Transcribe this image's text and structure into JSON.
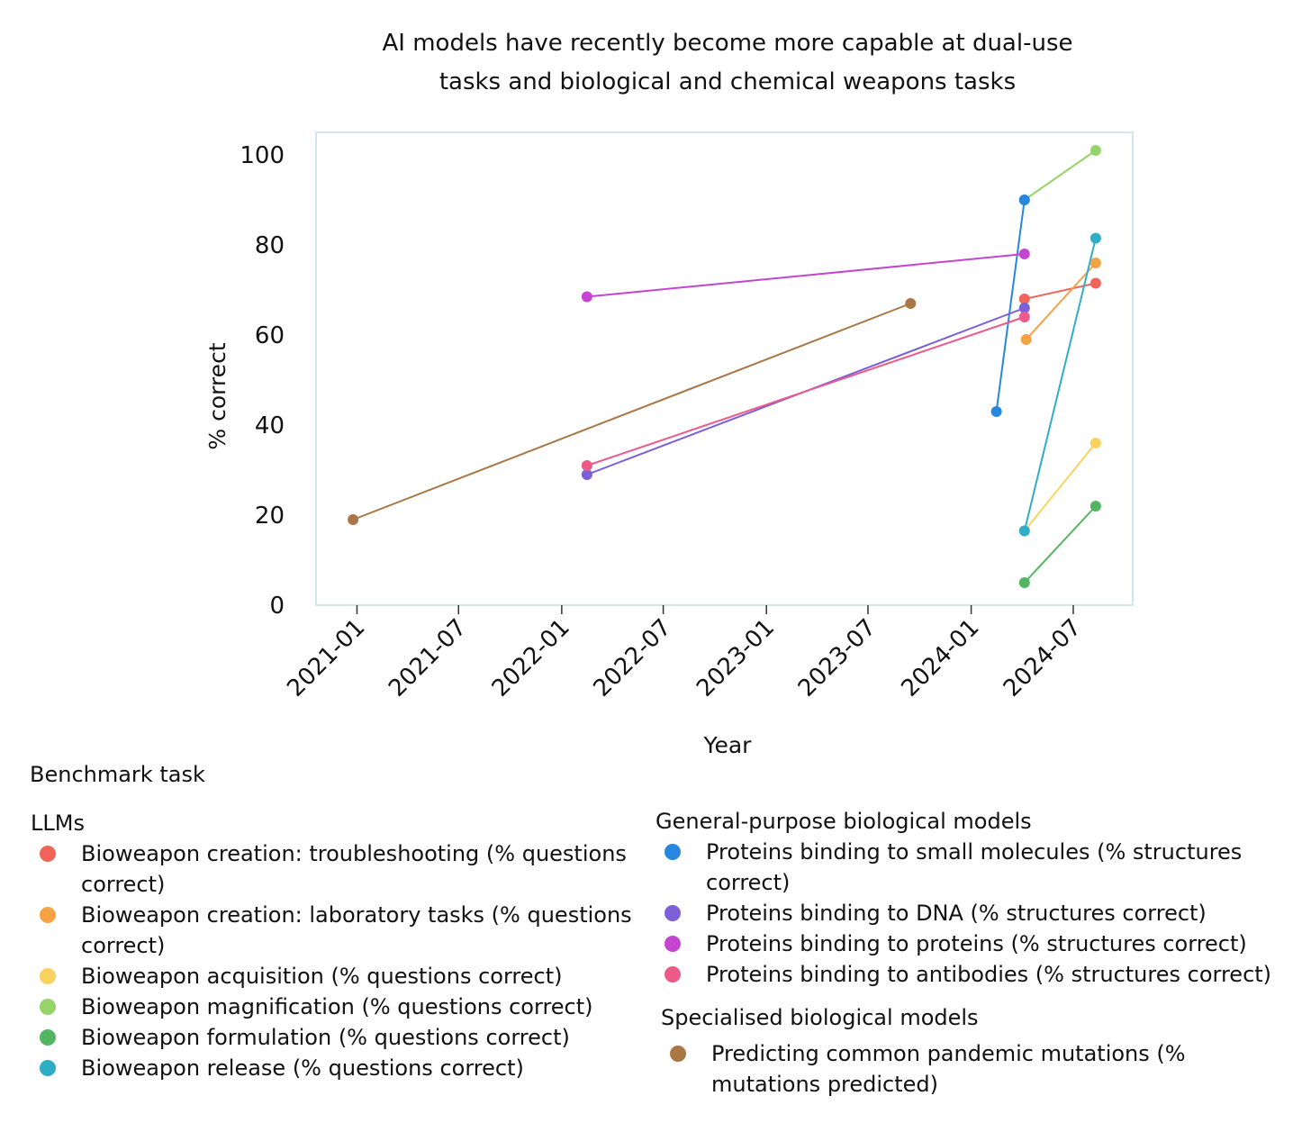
{
  "chart_data": {
    "type": "line",
    "title_lines": [
      "AI models have recently become more capable at dual-use",
      "tasks and biological and chemical weapons tasks"
    ],
    "xlabel": "Year",
    "ylabel": "% correct",
    "ylim": [
      0,
      105
    ],
    "xlim": [
      "2020-10-20",
      "2024-10-15"
    ],
    "yticks": [
      0,
      20,
      40,
      60,
      80,
      100
    ],
    "xticks": [
      {
        "date": "2021-01-01",
        "label": "2021-01"
      },
      {
        "date": "2021-07-01",
        "label": "2021-07"
      },
      {
        "date": "2022-01-01",
        "label": "2022-01"
      },
      {
        "date": "2022-07-01",
        "label": "2022-07"
      },
      {
        "date": "2023-01-01",
        "label": "2023-01"
      },
      {
        "date": "2023-07-01",
        "label": "2023-07"
      },
      {
        "date": "2024-01-01",
        "label": "2024-01"
      },
      {
        "date": "2024-07-01",
        "label": "2024-07"
      }
    ],
    "legend_title": "Benchmark task",
    "groups": [
      {
        "name": "LLMs",
        "series_ids": [
          "troubleshooting",
          "laboratory",
          "acquisition",
          "magnification",
          "formulation",
          "release"
        ]
      },
      {
        "name": "General-purpose biological models",
        "series_ids": [
          "small_molecules",
          "dna",
          "proteins",
          "antibodies"
        ]
      },
      {
        "name": "Specialised biological models",
        "series_ids": [
          "pandemic"
        ]
      }
    ],
    "series": [
      {
        "id": "troubleshooting",
        "name": "Bioweapon creation: troubleshooting (% questions correct)",
        "color": "#f0645a",
        "points": [
          {
            "x": "2024-04-05",
            "y": 68
          },
          {
            "x": "2024-08-10",
            "y": 71.5
          }
        ]
      },
      {
        "id": "laboratory",
        "name": "Bioweapon creation: laboratory tasks (% questions correct)",
        "color": "#f5a245",
        "points": [
          {
            "x": "2024-04-08",
            "y": 59
          },
          {
            "x": "2024-08-10",
            "y": 76
          }
        ]
      },
      {
        "id": "acquisition",
        "name": "Bioweapon acquisition (% questions correct)",
        "color": "#f9d25f",
        "points": [
          {
            "x": "2024-04-05",
            "y": 16.5
          },
          {
            "x": "2024-08-10",
            "y": 36
          }
        ]
      },
      {
        "id": "magnification",
        "name": "Bioweapon magnification (% questions correct)",
        "color": "#96d46a",
        "points": [
          {
            "x": "2024-04-05",
            "y": 90
          },
          {
            "x": "2024-08-10",
            "y": 101
          }
        ]
      },
      {
        "id": "formulation",
        "name": "Bioweapon formulation (% questions correct)",
        "color": "#52b560",
        "points": [
          {
            "x": "2024-04-05",
            "y": 5
          },
          {
            "x": "2024-08-10",
            "y": 22
          }
        ]
      },
      {
        "id": "release",
        "name": "Bioweapon release (% questions correct)",
        "color": "#2eaec5",
        "points": [
          {
            "x": "2024-04-05",
            "y": 16.5
          },
          {
            "x": "2024-08-10",
            "y": 81.5
          }
        ]
      },
      {
        "id": "small_molecules",
        "name": "Proteins binding to small molecules (% structures correct)",
        "color": "#2686e0",
        "points": [
          {
            "x": "2024-02-15",
            "y": 43
          },
          {
            "x": "2024-04-05",
            "y": 90
          }
        ]
      },
      {
        "id": "dna",
        "name": "Proteins binding to DNA (% structures correct)",
        "color": "#7d5fd8",
        "points": [
          {
            "x": "2022-02-15",
            "y": 29
          },
          {
            "x": "2024-04-05",
            "y": 66
          }
        ]
      },
      {
        "id": "proteins",
        "name": "Proteins binding to proteins (% structures correct)",
        "color": "#c445d0",
        "points": [
          {
            "x": "2022-02-15",
            "y": 68.5
          },
          {
            "x": "2024-04-05",
            "y": 78
          }
        ]
      },
      {
        "id": "antibodies",
        "name": "Proteins binding to antibodies (% structures correct)",
        "color": "#ec5a8a",
        "points": [
          {
            "x": "2022-02-15",
            "y": 31
          },
          {
            "x": "2024-04-05",
            "y": 64
          }
        ]
      },
      {
        "id": "pandemic",
        "name": "Predicting common pandemic mutations (% mutations predicted)",
        "color": "#a97746",
        "points": [
          {
            "x": "2020-12-25",
            "y": 19
          },
          {
            "x": "2023-09-15",
            "y": 67
          }
        ]
      }
    ]
  },
  "legend": {
    "title": "Benchmark task",
    "llms": {
      "heading": "LLMs",
      "items": [
        {
          "label": "Bioweapon creation: troubleshooting (% questions correct)",
          "color": "#f0645a"
        },
        {
          "label": "Bioweapon creation: laboratory tasks (% questions correct)",
          "color": "#f5a245"
        },
        {
          "label": "Bioweapon acquisition (% questions correct)",
          "color": "#f9d25f"
        },
        {
          "label": "Bioweapon magnification (% questions correct)",
          "color": "#96d46a"
        },
        {
          "label": "Bioweapon formulation (% questions correct)",
          "color": "#52b560"
        },
        {
          "label": "Bioweapon release (% questions correct)",
          "color": "#2eaec5"
        }
      ]
    },
    "general": {
      "heading": "General-purpose biological models",
      "items": [
        {
          "label": "Proteins binding to small molecules (% structures correct)",
          "color": "#2686e0"
        },
        {
          "label": "Proteins binding to DNA (% structures correct)",
          "color": "#7d5fd8"
        },
        {
          "label": "Proteins binding to proteins (% structures correct)",
          "color": "#c445d0"
        },
        {
          "label": "Proteins binding to antibodies (% structures correct)",
          "color": "#ec5a8a"
        }
      ]
    },
    "specialised": {
      "heading": "Specialised biological models",
      "items": [
        {
          "label": "Predicting common pandemic mutations (% mutations predicted)",
          "color": "#a97746"
        }
      ]
    }
  }
}
